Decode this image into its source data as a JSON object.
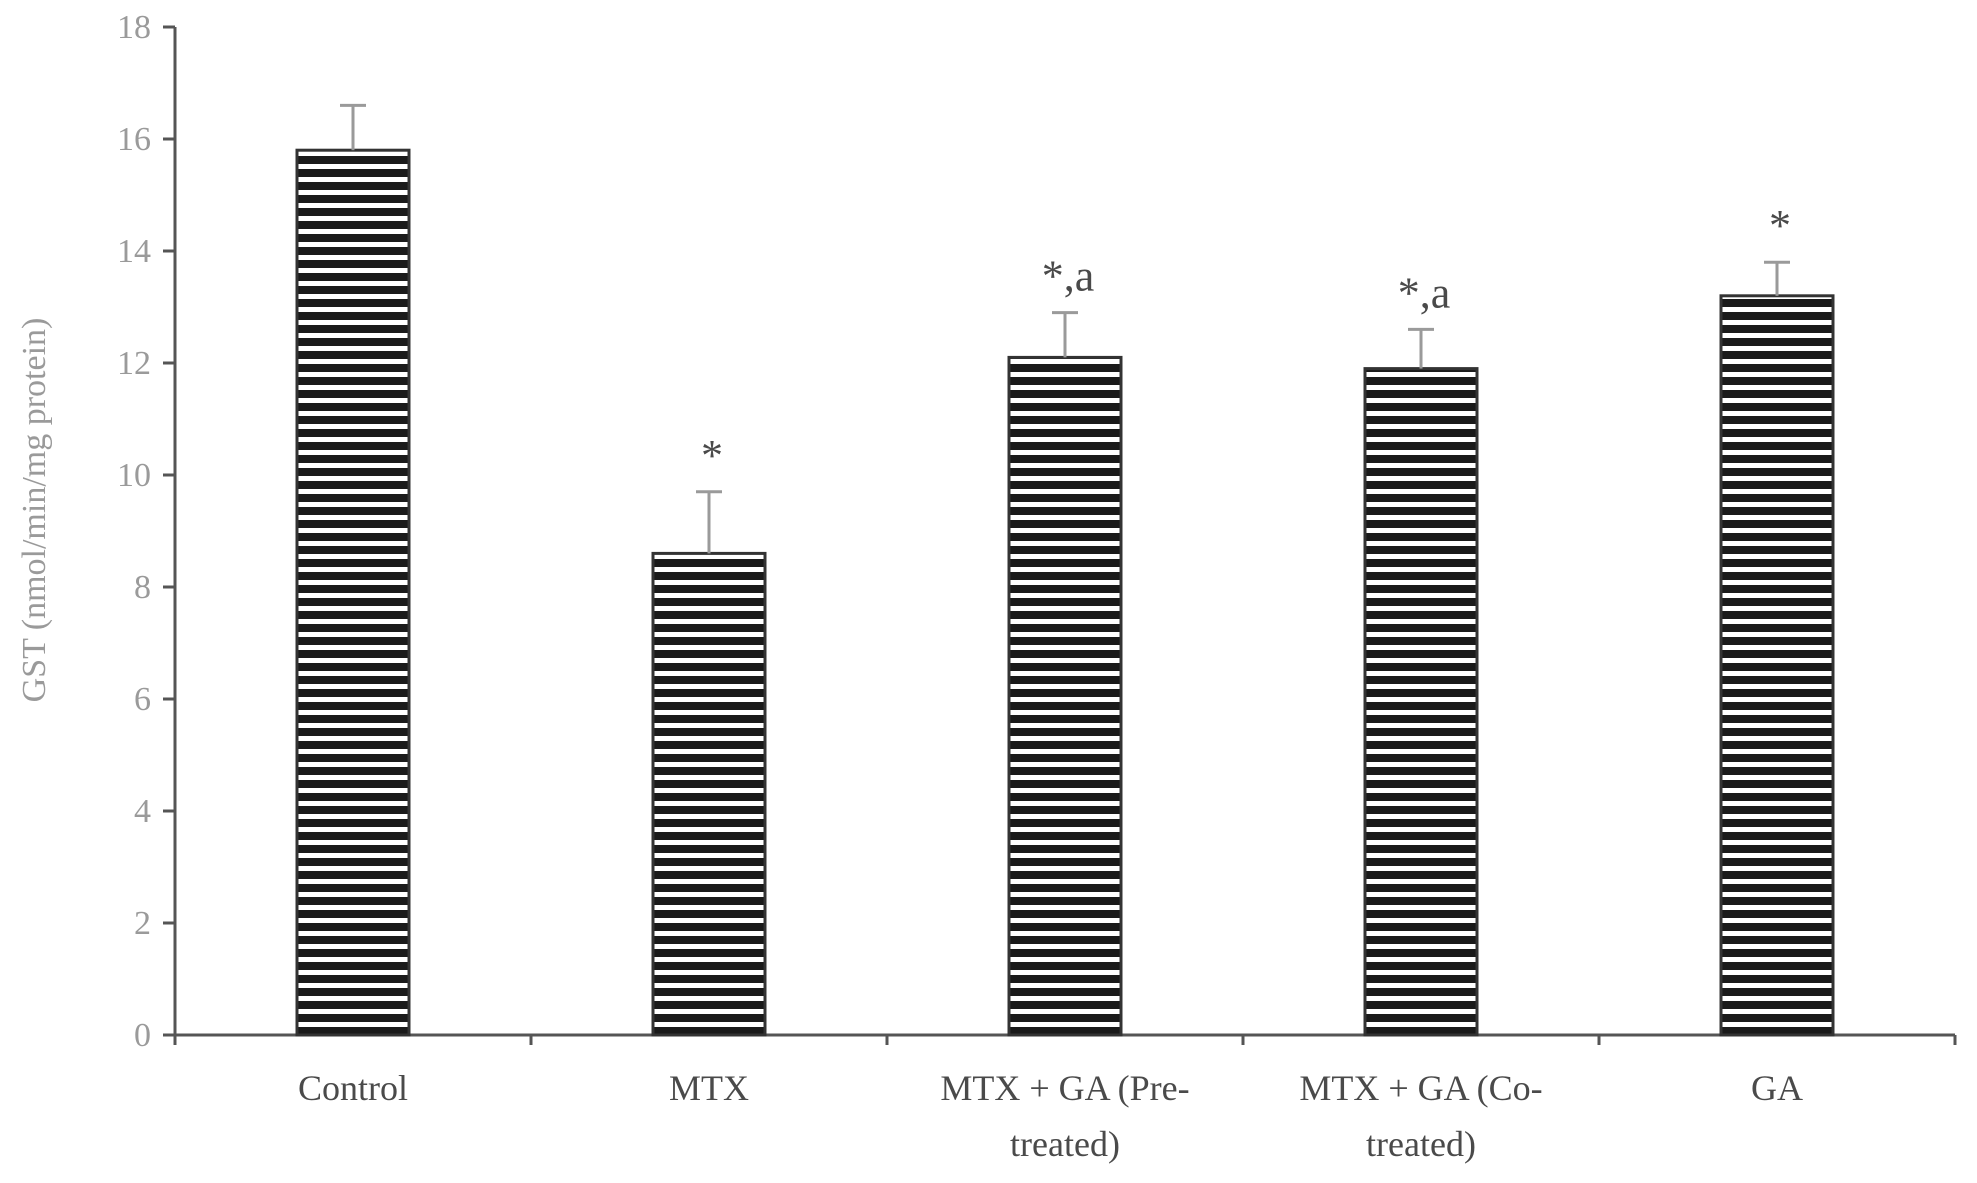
{
  "chart_data": {
    "type": "bar",
    "title": "",
    "xlabel": "",
    "ylabel": "GST (nmol/min/mg protein)",
    "ylim": [
      0,
      18
    ],
    "yticks": [
      0,
      2,
      4,
      6,
      8,
      10,
      12,
      14,
      16,
      18
    ],
    "categories": [
      [
        "Control"
      ],
      [
        "MTX"
      ],
      [
        "MTX + GA (Pre-",
        "treated)"
      ],
      [
        "MTX + GA (Co-",
        "treated)"
      ],
      [
        "GA"
      ]
    ],
    "values": [
      15.8,
      8.6,
      12.1,
      11.9,
      13.2
    ],
    "errors": [
      0.8,
      1.1,
      0.8,
      0.7,
      0.6
    ],
    "annotations": [
      "",
      "*",
      "*,a",
      "*,a",
      "*"
    ],
    "grid": false,
    "legend": "none",
    "colors": {
      "bar_stripe": "#1a1a1a",
      "bar_gap": "#ffffff",
      "axis": "#555555",
      "error_bar": "#9a9a9a",
      "tick_text": "#9a9a9a",
      "label_text": "#4a4a4a"
    }
  }
}
